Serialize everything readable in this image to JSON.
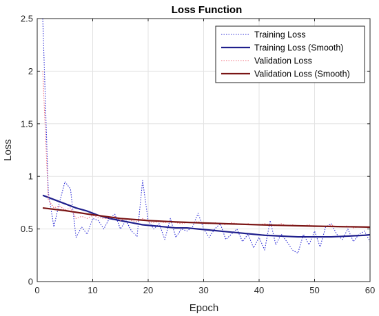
{
  "chart_data": {
    "type": "line",
    "title": "Loss Function",
    "xlabel": "Epoch",
    "ylabel": "Loss",
    "xlim": [
      0,
      60
    ],
    "ylim": [
      0,
      2.5
    ],
    "xticks": [
      0,
      10,
      20,
      30,
      40,
      50,
      60
    ],
    "yticks": [
      0,
      0.5,
      1,
      1.5,
      2,
      2.5
    ],
    "xtick_labels": [
      "0",
      "10",
      "20",
      "30",
      "40",
      "50",
      "60"
    ],
    "ytick_labels": [
      "0",
      "0.5",
      "1",
      "1.5",
      "2",
      "2.5"
    ],
    "grid": true,
    "legend_position": "top-right",
    "series": [
      {
        "name": "Training Loss",
        "color": "#2b2bd6",
        "style": "dotted",
        "x": [
          1,
          2,
          3,
          4,
          5,
          6,
          7,
          8,
          9,
          10,
          11,
          12,
          13,
          14,
          15,
          16,
          17,
          18,
          19,
          20,
          21,
          22,
          23,
          24,
          25,
          26,
          27,
          28,
          29,
          30,
          31,
          32,
          33,
          34,
          35,
          36,
          37,
          38,
          39,
          40,
          41,
          42,
          43,
          44,
          45,
          46,
          47,
          48,
          49,
          50,
          51,
          52,
          53,
          54,
          55,
          56,
          57,
          58,
          59,
          60
        ],
        "y": [
          2.5,
          0.85,
          0.52,
          0.75,
          0.95,
          0.88,
          0.42,
          0.52,
          0.45,
          0.6,
          0.58,
          0.5,
          0.6,
          0.64,
          0.5,
          0.58,
          0.48,
          0.43,
          0.96,
          0.58,
          0.5,
          0.55,
          0.4,
          0.6,
          0.42,
          0.5,
          0.48,
          0.52,
          0.65,
          0.5,
          0.42,
          0.5,
          0.55,
          0.4,
          0.45,
          0.5,
          0.38,
          0.45,
          0.32,
          0.42,
          0.3,
          0.58,
          0.35,
          0.45,
          0.38,
          0.3,
          0.27,
          0.45,
          0.35,
          0.48,
          0.33,
          0.52,
          0.55,
          0.45,
          0.4,
          0.5,
          0.38,
          0.45,
          0.48,
          0.38
        ]
      },
      {
        "name": "Training Loss (Smooth)",
        "color": "#1f1f8c",
        "style": "solid",
        "x": [
          1,
          3,
          5,
          7,
          9,
          11,
          13,
          15,
          17,
          19,
          21,
          23,
          25,
          27,
          29,
          31,
          33,
          35,
          37,
          39,
          41,
          43,
          45,
          47,
          49,
          51,
          53,
          55,
          57,
          59,
          60
        ],
        "y": [
          0.82,
          0.78,
          0.74,
          0.7,
          0.67,
          0.63,
          0.6,
          0.58,
          0.56,
          0.54,
          0.53,
          0.52,
          0.51,
          0.51,
          0.5,
          0.49,
          0.48,
          0.47,
          0.46,
          0.45,
          0.44,
          0.435,
          0.43,
          0.425,
          0.425,
          0.425,
          0.425,
          0.43,
          0.435,
          0.44,
          0.445
        ]
      },
      {
        "name": "Validation Loss",
        "color": "#f06a78",
        "style": "dotted",
        "x": [
          1,
          2,
          3,
          4,
          5,
          6,
          7,
          8,
          9,
          10,
          11,
          12,
          13,
          14,
          15,
          16,
          17,
          18,
          19,
          20,
          21,
          22,
          23,
          24,
          25,
          26,
          27,
          28,
          29,
          30,
          31,
          32,
          33,
          34,
          35,
          36,
          37,
          38,
          39,
          40,
          41,
          42,
          43,
          44,
          45,
          46,
          47,
          48,
          49,
          50,
          51,
          52,
          53,
          54,
          55,
          56,
          57,
          58,
          59,
          60
        ],
        "y": [
          2.0,
          0.78,
          0.7,
          0.72,
          0.68,
          0.7,
          0.6,
          0.62,
          0.6,
          0.63,
          0.61,
          0.6,
          0.6,
          0.62,
          0.58,
          0.6,
          0.58,
          0.57,
          0.6,
          0.57,
          0.56,
          0.57,
          0.56,
          0.57,
          0.56,
          0.55,
          0.56,
          0.56,
          0.57,
          0.55,
          0.55,
          0.56,
          0.55,
          0.54,
          0.56,
          0.55,
          0.54,
          0.55,
          0.54,
          0.54,
          0.55,
          0.54,
          0.53,
          0.55,
          0.53,
          0.54,
          0.53,
          0.53,
          0.54,
          0.52,
          0.53,
          0.52,
          0.54,
          0.52,
          0.52,
          0.53,
          0.51,
          0.52,
          0.52,
          0.51
        ]
      },
      {
        "name": "Validation Loss (Smooth)",
        "color": "#7a1515",
        "style": "solid",
        "x": [
          1,
          5,
          10,
          15,
          20,
          25,
          30,
          35,
          40,
          45,
          50,
          55,
          60
        ],
        "y": [
          0.7,
          0.675,
          0.635,
          0.6,
          0.58,
          0.567,
          0.557,
          0.548,
          0.54,
          0.533,
          0.527,
          0.522,
          0.518
        ]
      }
    ]
  }
}
